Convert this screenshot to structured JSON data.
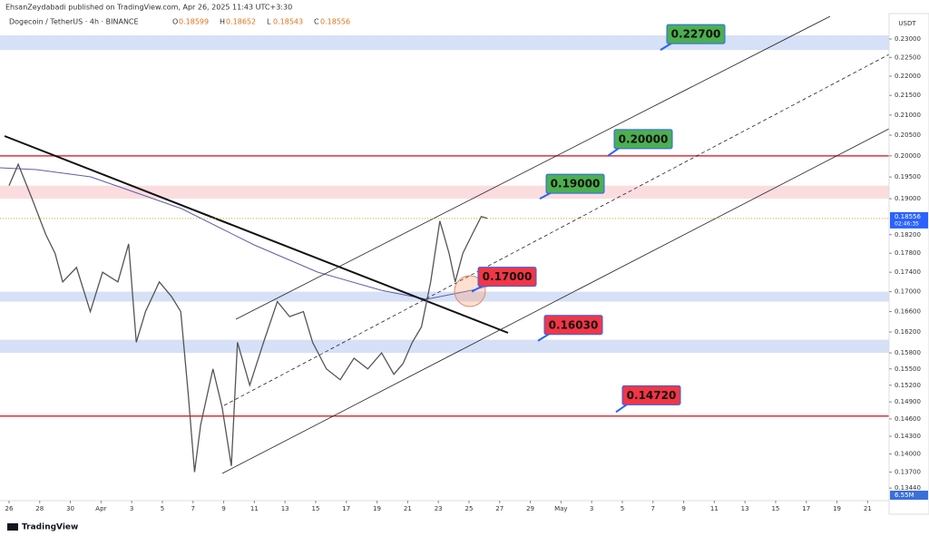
{
  "header": {
    "publisher": "EhsanZeydabadi published on TradingView.com, Apr 26, 2025 11:43 UTC+3:30",
    "symbol": "Dogecoin / TetherUS · 4h · BINANCE",
    "ohlc": [
      {
        "label": "O",
        "value": "0.18599"
      },
      {
        "label": "H",
        "value": "0.18652"
      },
      {
        "label": "L",
        "value": "0.18543"
      },
      {
        "label": "C",
        "value": "0.18556"
      }
    ],
    "currency": "USDT",
    "logo": "TradingView"
  },
  "chart_data": {
    "type": "line",
    "log_scale": true,
    "color": "#555555",
    "x": [
      0,
      0.6,
      1.5,
      2.4,
      3,
      3.5,
      4.4,
      5.3,
      6.1,
      7.1,
      7.8,
      8.3,
      8.9,
      9.8,
      10.6,
      11.2,
      11.7,
      12.1,
      12.5,
      13.3,
      13.9,
      14.5,
      14.9,
      15.7,
      16.6,
      17.5,
      18.3,
      19.2,
      19.8,
      20.7,
      21.6,
      22.5,
      23.4,
      24.3,
      25.1,
      25.7,
      26.3,
      26.9,
      27.5,
      28.1,
      28.7,
      29.1,
      29.6,
      30.2,
      30.8,
      31.2
    ],
    "values": [
      0.193,
      0.198,
      0.19,
      0.182,
      0.178,
      0.172,
      0.175,
      0.166,
      0.174,
      0.172,
      0.18,
      0.16,
      0.166,
      0.172,
      0.169,
      0.166,
      0.15,
      0.137,
      0.145,
      0.155,
      0.148,
      0.138,
      0.16,
      0.152,
      0.16,
      0.168,
      0.165,
      0.166,
      0.16,
      0.155,
      0.153,
      0.157,
      0.155,
      0.158,
      0.154,
      0.156,
      0.16,
      0.163,
      0.172,
      0.185,
      0.178,
      0.172,
      0.178,
      0.182,
      0.186,
      0.1856
    ],
    "xlim": [
      -0.59,
      57.4
    ],
    "ylim": [
      0.1324,
      0.2371
    ],
    "xticks": [
      {
        "value": 0,
        "label": "26"
      },
      {
        "value": 2,
        "label": "28"
      },
      {
        "value": 4,
        "label": "30"
      },
      {
        "value": 6,
        "label": "Apr"
      },
      {
        "value": 8,
        "label": "3"
      },
      {
        "value": 10,
        "label": "5"
      },
      {
        "value": 12,
        "label": "7"
      },
      {
        "value": 14,
        "label": "9"
      },
      {
        "value": 16,
        "label": "11"
      },
      {
        "value": 18,
        "label": "13"
      },
      {
        "value": 20,
        "label": "15"
      },
      {
        "value": 22,
        "label": "17"
      },
      {
        "value": 24,
        "label": "19"
      },
      {
        "value": 26,
        "label": "21"
      },
      {
        "value": 28,
        "label": "23"
      },
      {
        "value": 30,
        "label": "25"
      },
      {
        "value": 32,
        "label": "27"
      },
      {
        "value": 34,
        "label": "29"
      },
      {
        "value": 36,
        "label": "May"
      },
      {
        "value": 38,
        "label": "3"
      },
      {
        "value": 40,
        "label": "5"
      },
      {
        "value": 42,
        "label": "7"
      },
      {
        "value": 44,
        "label": "9"
      },
      {
        "value": 46,
        "label": "11"
      },
      {
        "value": 48,
        "label": "13"
      },
      {
        "value": 50,
        "label": "15"
      },
      {
        "value": 52,
        "label": "17"
      },
      {
        "value": 54,
        "label": "19"
      },
      {
        "value": 56,
        "label": "21"
      }
    ],
    "yticks": [
      {
        "value": 0.23,
        "label": "0.23000"
      },
      {
        "value": 0.225,
        "label": "0.22500"
      },
      {
        "value": 0.22,
        "label": "0.22000"
      },
      {
        "value": 0.215,
        "label": "0.21500"
      },
      {
        "value": 0.21,
        "label": "0.21000"
      },
      {
        "value": 0.205,
        "label": "0.20500"
      },
      {
        "value": 0.2,
        "label": "0.20000"
      },
      {
        "value": 0.195,
        "label": "0.19500"
      },
      {
        "value": 0.19,
        "label": "0.19000"
      },
      {
        "value": 0.182,
        "label": "0.18200"
      },
      {
        "value": 0.178,
        "label": "0.17800"
      },
      {
        "value": 0.174,
        "label": "0.17400"
      },
      {
        "value": 0.17,
        "label": "0.17000"
      },
      {
        "value": 0.166,
        "label": "0.16600"
      },
      {
        "value": 0.162,
        "label": "0.16200"
      },
      {
        "value": 0.158,
        "label": "0.15800"
      },
      {
        "value": 0.155,
        "label": "0.15500"
      },
      {
        "value": 0.152,
        "label": "0.15200"
      },
      {
        "value": 0.149,
        "label": "0.14900"
      },
      {
        "value": 0.146,
        "label": "0.14600"
      },
      {
        "value": 0.143,
        "label": "0.14300"
      },
      {
        "value": 0.14,
        "label": "0.14000"
      },
      {
        "value": 0.137,
        "label": "0.13700"
      },
      {
        "value": 0.1344,
        "label": "0.13440"
      }
    ],
    "zones": [
      {
        "low": 0.227,
        "high": 0.231,
        "color": "#d6e0f7"
      },
      {
        "low": 0.19,
        "high": 0.193,
        "color": "#fbdde0"
      },
      {
        "low": 0.168,
        "high": 0.17,
        "color": "#d6e0f7"
      },
      {
        "low": 0.158,
        "high": 0.1605,
        "color": "#d6e0f7"
      }
    ],
    "lines": [
      {
        "value": 0.2,
        "color": "#e0303a"
      },
      {
        "value": 0.1465,
        "color": "#e0303a"
      }
    ],
    "callouts": [
      {
        "value": 0.227,
        "label": "0.22700",
        "color": "#4caf50"
      },
      {
        "value": 0.2,
        "label": "0.20000",
        "color": "#4caf50"
      },
      {
        "value": 0.19,
        "label": "0.19000",
        "color": "#4caf50"
      },
      {
        "value": 0.17,
        "label": "0.17000",
        "color": "#f23645"
      },
      {
        "value": 0.1603,
        "label": "0.16030",
        "color": "#f23645"
      },
      {
        "value": 0.1472,
        "label": "0.14720",
        "color": "#f23645"
      }
    ],
    "last_price": {
      "value": 0.18556,
      "label": "0.18556",
      "countdown": "02:46:35"
    },
    "volume_label": "6.55M"
  }
}
